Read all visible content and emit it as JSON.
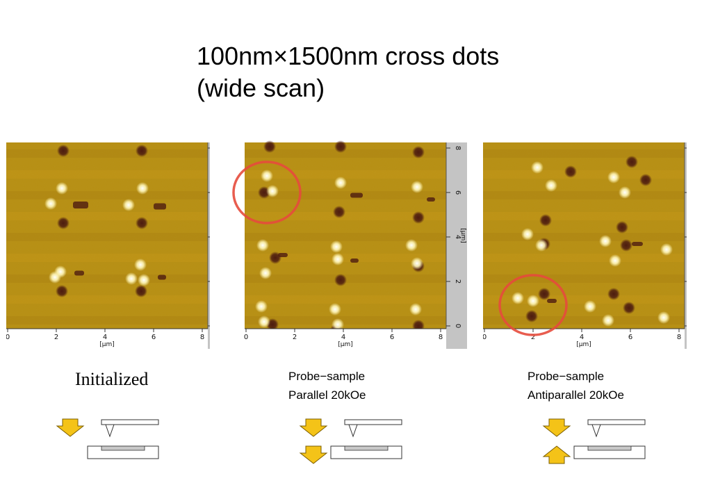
{
  "title": {
    "line1": "100nm×1500nm cross dots",
    "line2": "(wide scan)"
  },
  "scan_axes": {
    "x_ticks": [
      "0",
      "2",
      "4",
      "6",
      "8"
    ],
    "y_ticks": [
      "0",
      "2",
      "4",
      "6",
      "8"
    ],
    "x_unit": "[µm]",
    "y_unit": "[µm]"
  },
  "panels": [
    {
      "caption_lines": [
        "Initialized"
      ],
      "circle": false,
      "arrows": [
        "down"
      ]
    },
    {
      "caption_lines": [
        "Probe−sample",
        "Parallel 20kOe"
      ],
      "circle": true,
      "arrows": [
        "down",
        "down"
      ]
    },
    {
      "caption_lines": [
        "Probe−sample",
        "Antiparallel 20kOe"
      ],
      "circle": true,
      "arrows": [
        "down",
        "up"
      ]
    }
  ],
  "colors": {
    "scan_base": "#b88e12",
    "bright_spot": "#fff6b8",
    "dark_spot": "#4d1c10",
    "axis_strip": "#c4c4c4",
    "highlight_circle": "#e64b3c",
    "arrow_fill": "#f4c318",
    "arrow_stroke": "#7a5c00",
    "sample_fill": "#c8c8c8"
  }
}
